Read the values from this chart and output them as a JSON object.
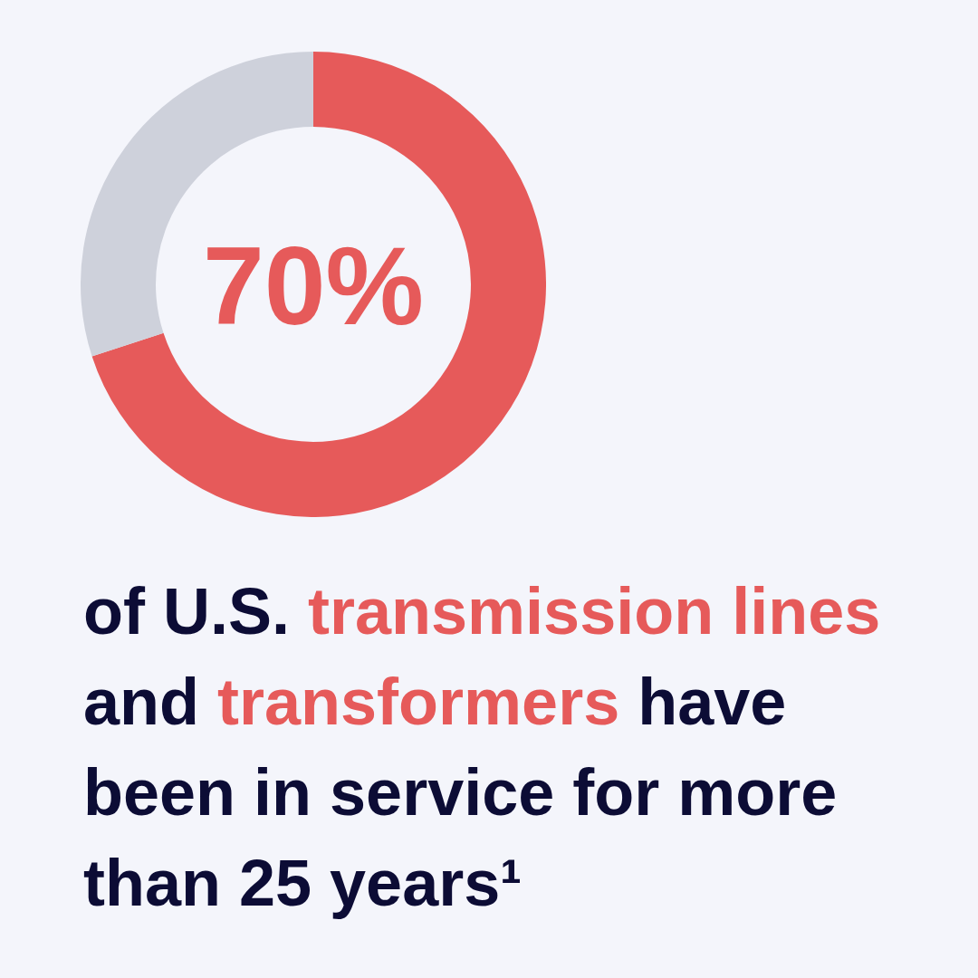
{
  "chart_data": {
    "type": "donut",
    "categories": [
      null,
      null
    ],
    "values": [
      70,
      30
    ],
    "colors": [
      "#e65a5a",
      "#ced1db"
    ],
    "value_labels": [
      "70%",
      null
    ],
    "annotations": [
      "of U.S.",
      "transmission lines",
      "and",
      "transformers",
      "have",
      "been in service for more than 25 years¹"
    ]
  }
}
